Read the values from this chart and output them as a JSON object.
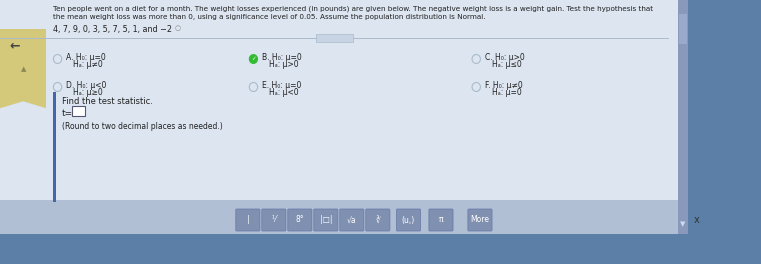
{
  "bg_color": "#5b7fa6",
  "main_bg": "#cdd8e8",
  "content_bg": "#dce5f0",
  "left_panel_color": "#d4c87a",
  "title_text1": "Ten people went on a diet for a month. The weight losses experienced (in pounds) are given below. The negative weight loss is a weight gain. Test the hypothesis that",
  "title_text2": "the mean weight loss was more than 0, using a significance level of 0.05. Assume the population distribution is Normal.",
  "data_line": "4, 7, 9, 0, 3, 5, 7, 5, 1, and −2",
  "optA_line1": "H₀: μ=0",
  "optA_line2": "Hₐ: μ≠0",
  "optB_line1": "H₀: μ=0",
  "optB_line2": "Hₐ: μ>0",
  "optC_line1": "H₀: μ>0",
  "optC_line2": "Hₐ: μ≤0",
  "optD_line1": "H₀: μ<0",
  "optD_line2": "Hₐ: μ≥0",
  "optE_line1": "H₀: μ=0",
  "optE_line2": "Hₐ: μ<0",
  "optF_line1": "H₀: μ≠0",
  "optF_line2": "Hₐ: μ=0",
  "find_stat": "Find the test statistic.",
  "t_label": "t=",
  "round_note": "(Round to two decimal places as needed.)",
  "text_color": "#222222",
  "dim_text": "#555555",
  "toolbar_bg": "#b0bfd4",
  "btn_bg": "#8090b0",
  "btn_text": "#ffffff",
  "scrollbar_color": "#8090b0"
}
